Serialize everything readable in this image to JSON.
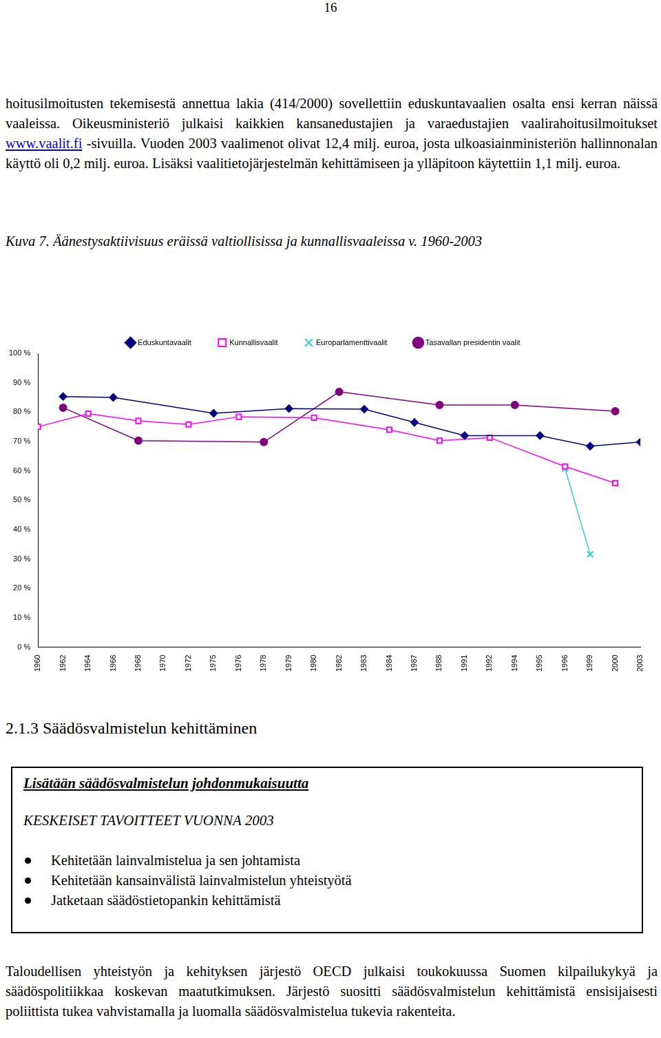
{
  "page_number": "16",
  "intro_paragraph": {
    "before_link": "hoitusilmoitusten tekemisestä annettua lakia (414/2000) sovellettiin eduskuntavaalien osalta ensi kerran näissä vaaleissa. Oikeusministeriö julkaisi kaikkien kansanedustajien ja varaedustajien vaalirahoitusilmoitukset ",
    "link": "www.vaalit.fi",
    "after_link": " -sivuilla. Vuoden 2003 vaalimenot olivat 12,4 milj. euroa, josta ulkoasiainministeriön hallinnonalan käyttö oli 0,2 milj. euroa. Lisäksi vaalitietojärjestelmän kehittämiseen ja ylläpitoon käytettiin 1,1 milj. euroa."
  },
  "figure_caption": "Kuva 7. Äänestysaktiivisuus eräissä valtiollisissa ja kunnallisvaaleissa v. 1960-2003",
  "chart_data": {
    "type": "line",
    "categories": [
      "1960",
      "1962",
      "1964",
      "1966",
      "1968",
      "1970",
      "1972",
      "1975",
      "1976",
      "1978",
      "1979",
      "1980",
      "1982",
      "1983",
      "1984",
      "1987",
      "1988",
      "1991",
      "1992",
      "1994",
      "1995",
      "1996",
      "1999",
      "2000",
      "2003"
    ],
    "series": [
      {
        "name": "Eduskuntavaalit",
        "color": "#000080",
        "marker": "diamond",
        "values": [
          null,
          85.3,
          null,
          85,
          null,
          null,
          null,
          79.6,
          null,
          null,
          81.2,
          null,
          null,
          81,
          null,
          76.5,
          null,
          72,
          null,
          null,
          72,
          null,
          68.4,
          null,
          69.8
        ]
      },
      {
        "name": "Kunnallisvaalit",
        "color": "#ff00ff",
        "marker": "square",
        "values": [
          75,
          null,
          79.5,
          null,
          77,
          null,
          75.8,
          null,
          78.4,
          null,
          null,
          78.1,
          null,
          null,
          74,
          null,
          70.3,
          null,
          71.3,
          null,
          null,
          61.5,
          null,
          55.8,
          null
        ]
      },
      {
        "name": "Europarlamenttivaalit",
        "color": "#33cccc",
        "marker": "x",
        "values": [
          null,
          null,
          null,
          null,
          null,
          null,
          null,
          null,
          null,
          null,
          null,
          null,
          null,
          null,
          null,
          null,
          null,
          null,
          null,
          null,
          null,
          60.8,
          31.6,
          null,
          null
        ]
      },
      {
        "name": "Tasavallan presidentin vaalit",
        "color": "#800080",
        "marker": "circle",
        "values": [
          null,
          81.5,
          null,
          null,
          70.3,
          null,
          null,
          null,
          null,
          69.8,
          null,
          null,
          86.9,
          null,
          null,
          null,
          82.4,
          null,
          null,
          82.4,
          null,
          null,
          null,
          80.3,
          null
        ]
      }
    ],
    "ylim": [
      0,
      100
    ],
    "yticks": [
      {
        "value": 0,
        "label": "0 %"
      },
      {
        "value": 10,
        "label": "10 %"
      },
      {
        "value": 20,
        "label": "20 %"
      },
      {
        "value": 30,
        "label": "30 %"
      },
      {
        "value": 40,
        "label": "40 %"
      },
      {
        "value": 50,
        "label": "50 %"
      },
      {
        "value": 60,
        "label": "60 %"
      },
      {
        "value": 70,
        "label": "70 %"
      },
      {
        "value": 80,
        "label": "80 %"
      },
      {
        "value": 90,
        "label": "90 %"
      },
      {
        "value": 100,
        "label": "100 %"
      }
    ],
    "grid": false,
    "legend": "top"
  },
  "section": {
    "heading": "2.1.3 Säädösvalmistelun kehittäminen",
    "box": {
      "title": "Lisätään säädösvalmistelun johdonmukaisuutta",
      "subtitle": "KESKEISET TAVOITTEET VUONNA 2003",
      "items": [
        "Kehitetään lainvalmistelua ja sen johtamista",
        "Kehitetään kansainvälistä lainvalmistelun yhteistyötä",
        "Jatketaan säädöstietopankin kehittämistä"
      ]
    },
    "paragraph": "Taloudellisen yhteistyön ja kehityksen järjestö OECD julkaisi toukokuussa Suomen kilpailukykyä ja säädöspolitiikkaa koskevan maatutkimuksen. Järjestö suositti säädösvalmistelun kehittämistä ensisijaisesti poliittista tukea vahvistamalla ja luomalla säädösvalmistelua tukevia rakenteita."
  }
}
